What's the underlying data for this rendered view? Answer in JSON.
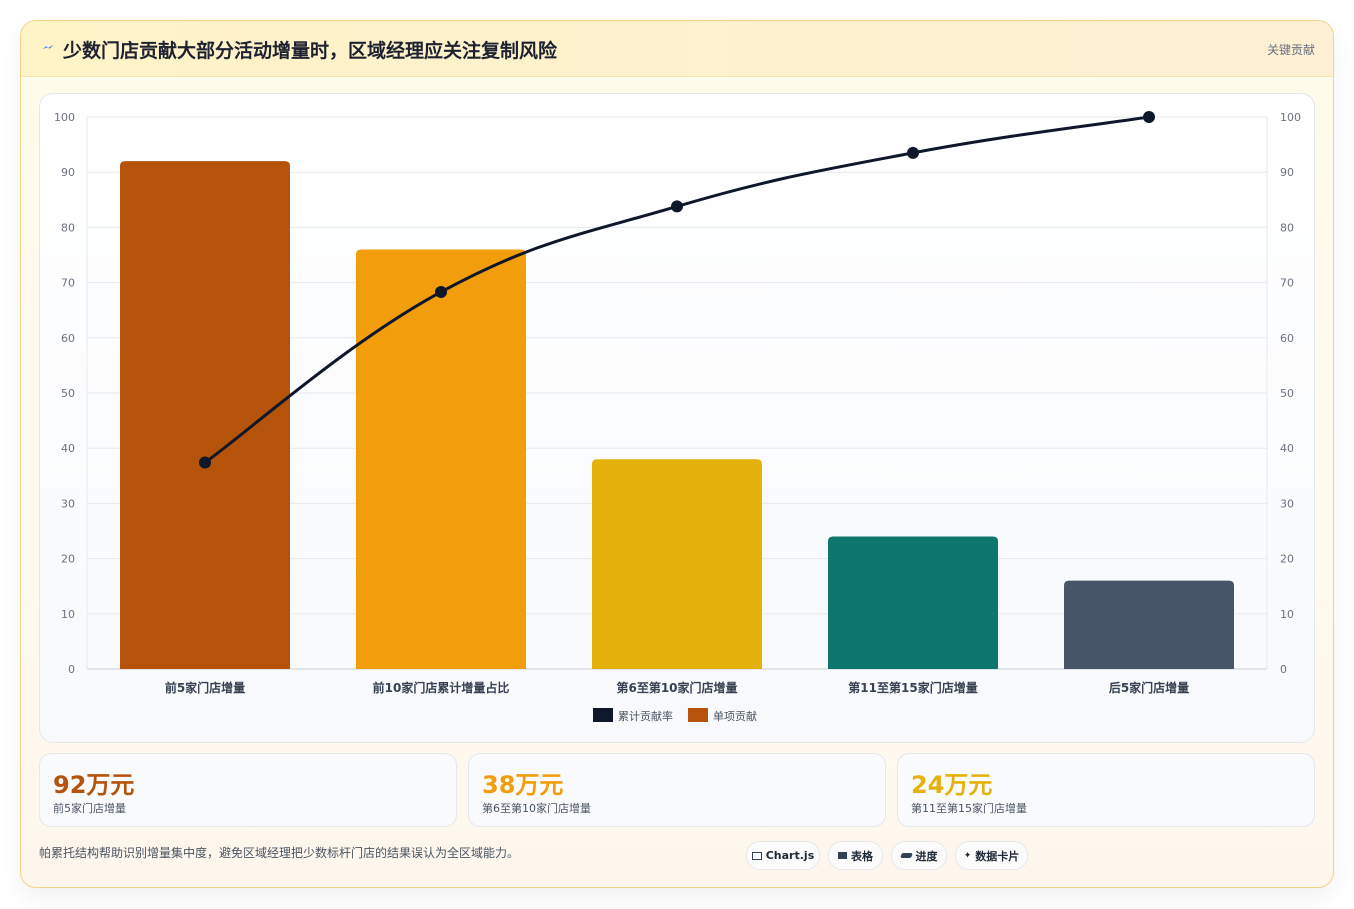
{
  "header": {
    "title": "少数门店贡献大部分活动增量时，区域经理应关注复制风险",
    "tag": "关键贡献"
  },
  "chart_data": {
    "type": "bar",
    "categories": [
      "前5家门店增量",
      "前10家门店累计增量占比",
      "第6至第10家门店增量",
      "第11至第15家门店增量",
      "后5家门店增量"
    ],
    "series": [
      {
        "name": "累计贡献率",
        "type": "line",
        "axis": "right",
        "color": "#0f172a",
        "values": [
          37.4,
          68.3,
          83.8,
          93.5,
          100
        ]
      },
      {
        "name": "单项贡献",
        "type": "bar",
        "axis": "left",
        "color": "#b45309",
        "values": [
          92,
          76,
          38,
          24,
          16
        ]
      }
    ],
    "bar_colors": [
      "#b45309",
      "#f29d0b",
      "#e5b20b",
      "#0f766e",
      "#475569"
    ],
    "ylim": [
      0,
      100
    ],
    "y2lim": [
      0,
      100
    ],
    "yticks": [
      0,
      10,
      20,
      30,
      40,
      50,
      60,
      70,
      80,
      90,
      100
    ],
    "grid": true,
    "legend_position": "bottom"
  },
  "stats": [
    {
      "value": "92万元",
      "label": "前5家门店增量",
      "color": "#b45309"
    },
    {
      "value": "38万元",
      "label": "第6至第10家门店增量",
      "color": "#f29d0b"
    },
    {
      "value": "24万元",
      "label": "第11至第15家门店增量",
      "color": "#e5b20b"
    }
  ],
  "footnote": "帕累托结构帮助识别增量集中度，避免区域经理把少数标杆门店的结果误认为全区域能力。",
  "chips": [
    {
      "label": "Chart.js",
      "icon": "chart-icon"
    },
    {
      "label": "表格",
      "icon": "table-icon"
    },
    {
      "label": "进度",
      "icon": "progress-icon"
    },
    {
      "label": "数据卡片",
      "icon": "card-icon"
    }
  ]
}
